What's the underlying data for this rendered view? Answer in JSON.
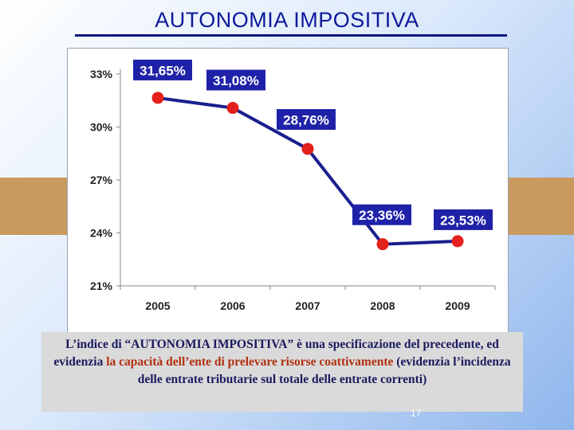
{
  "title": "AUTONOMIA IMPOSITIVA",
  "caption": {
    "part1": "L’indice di “AUTONOMIA IMPOSITIVA” è una specificazione del precedente, ed evidenzia ",
    "part2": "la capacità dell’ente di prelevare risorse coattivamente",
    "part3": " (evidenzia l’incidenza delle entrate tributarie sul totale delle entrate correnti)"
  },
  "page_number": "17",
  "colors": {
    "line": "#1a1f8e",
    "marker": "#e3201b",
    "label_bg": "#1f22a8",
    "label_text": "#ffffff",
    "title": "#0d1a9a"
  },
  "chart_data": {
    "type": "line",
    "categories": [
      "2005",
      "2006",
      "2007",
      "2008",
      "2009"
    ],
    "values": [
      31.65,
      31.08,
      28.76,
      23.36,
      23.53
    ],
    "data_labels": [
      "31,65%",
      "31,08%",
      "28,76%",
      "23,36%",
      "23,53%"
    ],
    "yticks": [
      "33%",
      "30%",
      "27%",
      "24%",
      "21%"
    ],
    "ytick_values": [
      33,
      30,
      27,
      24,
      21
    ],
    "ylim": [
      21,
      33
    ],
    "title": "",
    "xlabel": "",
    "ylabel": "",
    "grid": false,
    "legend": false
  }
}
